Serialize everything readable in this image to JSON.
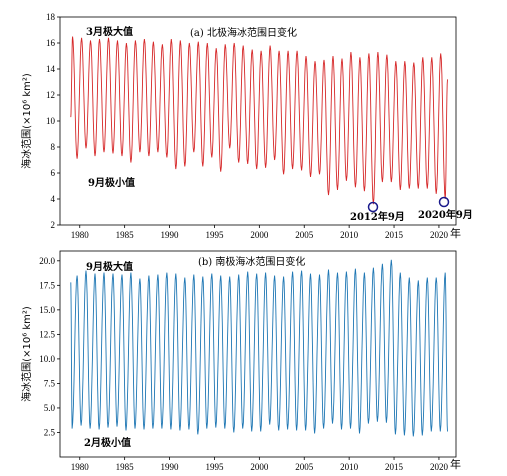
{
  "chart_data": [
    {
      "type": "line",
      "title": "(a) 北极海冰范围日变化",
      "ylabel": "海冰范围(×10⁶ km²)",
      "xunit": "年",
      "xlim": [
        1977.8,
        2021.9
      ],
      "ylim": [
        2,
        18
      ],
      "xticks": [
        1980,
        1985,
        1990,
        1995,
        2000,
        2005,
        2010,
        2015,
        2020
      ],
      "yticks": [
        2,
        4,
        6,
        8,
        10,
        12,
        14,
        16,
        18
      ],
      "yticklabels": [
        "2",
        "4",
        "6",
        "8",
        "10",
        "12",
        "14",
        "16",
        "18"
      ],
      "color": "#d62728",
      "start_year": 1979,
      "series": [
        {
          "max_values": [
            16.5,
            16.4,
            16.2,
            16.3,
            16.4,
            16.2,
            16.0,
            16.2,
            16.3,
            16.1,
            15.9,
            16.3,
            16.2,
            16.0,
            16.1,
            16.0,
            15.6,
            15.9,
            16.0,
            15.8,
            15.5,
            15.4,
            15.8,
            15.4,
            15.4,
            15.4,
            15.0,
            14.6,
            14.7,
            15.0,
            14.8,
            15.3,
            14.9,
            15.2,
            15.3,
            15.1,
            14.6,
            14.6,
            14.5,
            14.9,
            14.9,
            15.2
          ],
          "min_values": [
            7.1,
            7.9,
            7.3,
            7.6,
            7.5,
            7.3,
            6.8,
            7.6,
            7.3,
            7.6,
            7.2,
            6.3,
            6.5,
            7.6,
            6.5,
            7.2,
            6.1,
            7.9,
            6.8,
            6.7,
            6.3,
            6.4,
            7.0,
            5.9,
            6.3,
            6.2,
            5.7,
            5.9,
            4.3,
            4.7,
            5.4,
            4.9,
            4.6,
            3.6,
            5.3,
            5.3,
            4.7,
            4.8,
            4.8,
            4.8,
            4.4,
            4.0
          ]
        }
      ],
      "annotations": {
        "max_label": "3月极大值",
        "min_label": "9月极小值",
        "event1": "2012年9月",
        "event2": "2020年9月"
      }
    },
    {
      "type": "line",
      "title": "(b) 南极海冰范围日变化",
      "ylabel": "海冰范围(×10⁶ km²)",
      "xunit": "年",
      "xlim": [
        1977.8,
        2021.9
      ],
      "ylim": [
        0,
        21
      ],
      "xticks": [
        1980,
        1985,
        1990,
        1995,
        2000,
        2005,
        2010,
        2015,
        2020
      ],
      "yticks": [
        2.5,
        5.0,
        7.5,
        10.0,
        12.5,
        15.0,
        17.5,
        20.0
      ],
      "yticklabels": [
        "2.5",
        "5.0",
        "7.5",
        "10.0",
        "12.5",
        "15.0",
        "17.5",
        "20.0"
      ],
      "color": "#1f77b4",
      "start_year": 1979,
      "series": [
        {
          "max_values": [
            18.5,
            19.0,
            18.7,
            18.8,
            18.7,
            18.6,
            18.8,
            18.2,
            18.5,
            18.6,
            18.8,
            18.7,
            18.3,
            18.6,
            18.4,
            18.7,
            18.5,
            18.4,
            18.6,
            18.9,
            18.7,
            18.8,
            18.5,
            18.4,
            18.9,
            19.0,
            18.7,
            18.6,
            19.1,
            18.8,
            18.9,
            19.2,
            18.8,
            19.3,
            19.7,
            20.1,
            18.8,
            18.3,
            18.0,
            18.3,
            18.3,
            18.8
          ],
          "min_values": [
            2.9,
            3.2,
            2.9,
            2.8,
            3.0,
            3.1,
            2.7,
            2.9,
            2.8,
            2.9,
            2.9,
            2.8,
            2.7,
            2.8,
            2.3,
            2.9,
            3.0,
            2.9,
            2.5,
            2.9,
            2.6,
            2.6,
            3.3,
            2.7,
            2.8,
            2.7,
            2.7,
            2.4,
            2.9,
            3.4,
            2.8,
            2.9,
            2.4,
            3.4,
            3.6,
            3.5,
            2.3,
            2.2,
            2.1,
            2.2,
            2.6,
            2.6
          ]
        }
      ],
      "annotations": {
        "max_label": "9月极大值",
        "min_label": "2月极小值"
      }
    }
  ]
}
